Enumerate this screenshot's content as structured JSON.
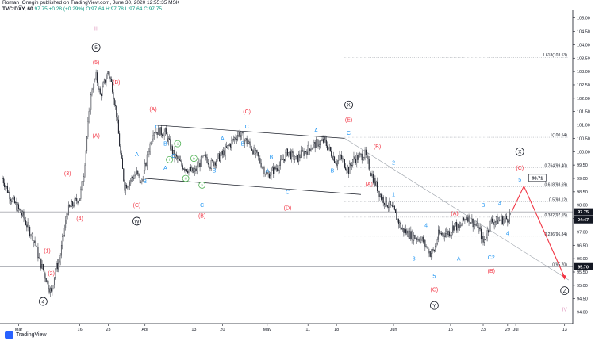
{
  "header": {
    "line1": "Roman_Onegin published on TradingView.com, June 30, 2020 12:55:35 MSK",
    "symbol": "TVC:DXY, 60",
    "last": "97.75",
    "change": "+0.28 (+0.29%)",
    "ohlc": "O:97.64 H:97.78 L:97.64 C:97.75"
  },
  "footer": {
    "brand": "TradingView",
    "logo_icon": "tradingview-logo-icon"
  },
  "colors": {
    "candle": "#131722",
    "blue_label": "#2196f3",
    "red_label": "#f23645",
    "green_label": "#4caf50",
    "purple_label": "#e2a2c4",
    "fib": "#8a8f98",
    "channel": "#131722",
    "projection": "#f23645",
    "tag_bg": "#131722"
  },
  "chart_data": {
    "type": "line",
    "title": "",
    "xlabel": "",
    "ylabel": "",
    "ylim": [
      93.75,
      105.05
    ],
    "x_range": [
      "2020-02-26",
      "2020-07-15"
    ],
    "x_ticks": [
      {
        "x": "2020-03-01",
        "label": "Mar"
      },
      {
        "x": "2020-03-16",
        "label": "16"
      },
      {
        "x": "2020-03-23",
        "label": "23"
      },
      {
        "x": "2020-04-01",
        "label": "Apr"
      },
      {
        "x": "2020-04-13",
        "label": "13"
      },
      {
        "x": "2020-04-20",
        "label": "20"
      },
      {
        "x": "2020-05-01",
        "label": "May"
      },
      {
        "x": "2020-05-11",
        "label": "11"
      },
      {
        "x": "2020-05-18",
        "label": "18"
      },
      {
        "x": "2020-06-01",
        "label": "Jun"
      },
      {
        "x": "2020-06-15",
        "label": "15"
      },
      {
        "x": "2020-06-23",
        "label": "23"
      },
      {
        "x": "2020-06-29",
        "label": "29"
      },
      {
        "x": "2020-07-01",
        "label": "Jul"
      },
      {
        "x": "2020-07-13",
        "label": "13"
      }
    ],
    "y_ticks": [
      "105.00",
      "104.50",
      "104.00",
      "103.50",
      "103.00",
      "102.50",
      "102.00",
      "101.50",
      "101.00",
      "100.50",
      "100.00",
      "99.50",
      "99.00",
      "98.50",
      "98.00",
      "97.50",
      "97.00",
      "96.50",
      "96.00",
      "95.50",
      "95.00",
      "94.50",
      "94.00"
    ],
    "series": [
      {
        "values": [
          {
            "x": "2020-02-26",
            "y": 99.0
          },
          {
            "x": "2020-02-28",
            "y": 98.3
          },
          {
            "x": "2020-03-02",
            "y": 97.6
          },
          {
            "x": "2020-03-05",
            "y": 96.6
          },
          {
            "x": "2020-03-06",
            "y": 96.0
          },
          {
            "x": "2020-03-09",
            "y": 94.7
          },
          {
            "x": "2020-03-10",
            "y": 95.6
          },
          {
            "x": "2020-03-11",
            "y": 95.9
          },
          {
            "x": "2020-03-12",
            "y": 96.9
          },
          {
            "x": "2020-03-13",
            "y": 97.8
          },
          {
            "x": "2020-03-16",
            "y": 98.3
          },
          {
            "x": "2020-03-17",
            "y": 99.2
          },
          {
            "x": "2020-03-18",
            "y": 101.0
          },
          {
            "x": "2020-03-19",
            "y": 102.4
          },
          {
            "x": "2020-03-20",
            "y": 102.8
          },
          {
            "x": "2020-03-21",
            "y": 102.1
          },
          {
            "x": "2020-03-23",
            "y": 103.0
          },
          {
            "x": "2020-03-24",
            "y": 102.4
          },
          {
            "x": "2020-03-25",
            "y": 101.4
          },
          {
            "x": "2020-03-26",
            "y": 99.9
          },
          {
            "x": "2020-03-27",
            "y": 98.7
          },
          {
            "x": "2020-03-30",
            "y": 99.2
          },
          {
            "x": "2020-03-31",
            "y": 98.8
          },
          {
            "x": "2020-04-01",
            "y": 99.4
          },
          {
            "x": "2020-04-02",
            "y": 100.1
          },
          {
            "x": "2020-04-03",
            "y": 100.8
          },
          {
            "x": "2020-04-06",
            "y": 100.7
          },
          {
            "x": "2020-04-08",
            "y": 99.9
          },
          {
            "x": "2020-04-10",
            "y": 99.5
          },
          {
            "x": "2020-04-13",
            "y": 99.2
          },
          {
            "x": "2020-04-15",
            "y": 99.7
          },
          {
            "x": "2020-04-16",
            "y": 99.8
          },
          {
            "x": "2020-04-17",
            "y": 99.5
          },
          {
            "x": "2020-04-20",
            "y": 99.9
          },
          {
            "x": "2020-04-22",
            "y": 100.3
          },
          {
            "x": "2020-04-24",
            "y": 100.7
          },
          {
            "x": "2020-04-27",
            "y": 100.2
          },
          {
            "x": "2020-04-29",
            "y": 99.7
          },
          {
            "x": "2020-05-01",
            "y": 99.1
          },
          {
            "x": "2020-05-04",
            "y": 99.5
          },
          {
            "x": "2020-05-06",
            "y": 100.0
          },
          {
            "x": "2020-05-08",
            "y": 99.7
          },
          {
            "x": "2020-05-11",
            "y": 100.1
          },
          {
            "x": "2020-05-13",
            "y": 100.3
          },
          {
            "x": "2020-05-15",
            "y": 100.4
          },
          {
            "x": "2020-05-18",
            "y": 99.6
          },
          {
            "x": "2020-05-19",
            "y": 99.8
          },
          {
            "x": "2020-05-21",
            "y": 99.3
          },
          {
            "x": "2020-05-22",
            "y": 99.7
          },
          {
            "x": "2020-05-25",
            "y": 99.9
          },
          {
            "x": "2020-05-27",
            "y": 99.0
          },
          {
            "x": "2020-05-29",
            "y": 98.3
          },
          {
            "x": "2020-06-01",
            "y": 97.8
          },
          {
            "x": "2020-06-03",
            "y": 97.1
          },
          {
            "x": "2020-06-05",
            "y": 96.9
          },
          {
            "x": "2020-06-08",
            "y": 96.7
          },
          {
            "x": "2020-06-10",
            "y": 96.2
          },
          {
            "x": "2020-06-11",
            "y": 96.3
          },
          {
            "x": "2020-06-12",
            "y": 96.9
          },
          {
            "x": "2020-06-15",
            "y": 97.0
          },
          {
            "x": "2020-06-16",
            "y": 97.3
          },
          {
            "x": "2020-06-17",
            "y": 97.1
          },
          {
            "x": "2020-06-19",
            "y": 97.6
          },
          {
            "x": "2020-06-22",
            "y": 97.1
          },
          {
            "x": "2020-06-23",
            "y": 96.6
          },
          {
            "x": "2020-06-24",
            "y": 97.0
          },
          {
            "x": "2020-06-25",
            "y": 97.4
          },
          {
            "x": "2020-06-26",
            "y": 97.4
          },
          {
            "x": "2020-06-29",
            "y": 97.5
          },
          {
            "x": "2020-06-30",
            "y": 97.75
          }
        ]
      }
    ],
    "fib_levels": [
      {
        "label": "1.618(103.53)",
        "y": 103.53
      },
      {
        "label": "1(100.54)",
        "y": 100.54
      },
      {
        "label": "0.764(99.40)",
        "y": 99.4
      },
      {
        "label": "0.618(98.69)",
        "y": 98.69
      },
      {
        "label": "0.5(98.12)",
        "y": 98.12
      },
      {
        "label": "0.382(97.55)",
        "y": 97.55
      },
      {
        "label": "0.236(96.84)",
        "y": 96.84
      },
      {
        "label": "0(95.70)",
        "y": 95.7
      }
    ],
    "price_tags": [
      {
        "label": "97.75",
        "y": 97.75
      },
      {
        "label": "04:47",
        "y": 97.45
      },
      {
        "label": "95.70",
        "y": 95.7
      }
    ],
    "hlines": [
      {
        "y": 97.75,
        "style": "solid"
      },
      {
        "y": 95.7,
        "style": "solid"
      }
    ],
    "channel": [
      {
        "x1": "2020-04-03",
        "y1": 101.0,
        "x2": "2020-05-20",
        "y2": 100.5
      },
      {
        "x1": "2020-04-01",
        "y1": 99.0,
        "x2": "2020-05-24",
        "y2": 98.4
      }
    ],
    "trendline": {
      "x1": "2020-05-20",
      "y1": 100.5,
      "x2": "2020-07-14",
      "y2": 95.2
    },
    "projection": {
      "points": [
        {
          "x": "2020-06-30",
          "y": 97.75
        },
        {
          "x": "2020-07-03",
          "y": 98.71
        },
        {
          "x": "2020-07-13",
          "y": 95.3
        }
      ],
      "label": "98.71"
    },
    "annotations": [
      {
        "text": "III",
        "x": "2020-03-20",
        "y": 104.6,
        "color": "purple",
        "style": "plain"
      },
      {
        "text": "5",
        "x": "2020-03-20",
        "y": 103.9,
        "color": "black",
        "style": "circle"
      },
      {
        "text": "(5)",
        "x": "2020-03-20",
        "y": 103.35,
        "color": "red",
        "style": "plain"
      },
      {
        "text": "(B)",
        "x": "2020-03-25",
        "y": 102.6,
        "color": "red",
        "style": "plain"
      },
      {
        "text": "(A)",
        "x": "2020-03-20",
        "y": 100.6,
        "color": "red",
        "style": "plain"
      },
      {
        "text": "(3)",
        "x": "2020-03-13",
        "y": 99.2,
        "color": "red",
        "style": "plain"
      },
      {
        "text": "(4)",
        "x": "2020-03-16",
        "y": 97.5,
        "color": "red",
        "style": "plain"
      },
      {
        "text": "(1)",
        "x": "2020-03-08",
        "y": 96.3,
        "color": "red",
        "style": "plain"
      },
      {
        "text": "(2)",
        "x": "2020-03-09",
        "y": 95.45,
        "color": "red",
        "style": "plain"
      },
      {
        "text": "4",
        "x": "2020-03-07",
        "y": 94.4,
        "color": "black",
        "style": "circle"
      },
      {
        "text": "(A)",
        "x": "2020-04-03",
        "y": 101.6,
        "color": "red",
        "style": "plain"
      },
      {
        "text": "C",
        "x": "2020-04-04",
        "y": 100.95,
        "color": "blue",
        "style": "plain"
      },
      {
        "text": "A",
        "x": "2020-03-30",
        "y": 99.9,
        "color": "blue",
        "style": "plain"
      },
      {
        "text": "B",
        "x": "2020-04-01",
        "y": 98.9,
        "color": "blue",
        "style": "plain"
      },
      {
        "text": "B",
        "x": "2020-04-06",
        "y": 100.3,
        "color": "blue",
        "style": "plain"
      },
      {
        "text": "ii",
        "x": "2020-04-09",
        "y": 100.3,
        "color": "green",
        "style": "circle"
      },
      {
        "text": "A",
        "x": "2020-04-06",
        "y": 99.4,
        "color": "blue",
        "style": "plain"
      },
      {
        "text": "C",
        "x": "2020-04-08",
        "y": 99.85,
        "color": "blue",
        "style": "plain"
      },
      {
        "text": "i",
        "x": "2020-04-07",
        "y": 99.7,
        "color": "green",
        "style": "circle"
      },
      {
        "text": "iv",
        "x": "2020-04-13",
        "y": 99.75,
        "color": "green",
        "style": "circle"
      },
      {
        "text": "iii",
        "x": "2020-04-11",
        "y": 99.0,
        "color": "green",
        "style": "circle"
      },
      {
        "text": "v",
        "x": "2020-04-15",
        "y": 98.75,
        "color": "green",
        "style": "circle"
      },
      {
        "text": "C",
        "x": "2020-04-15",
        "y": 98.0,
        "color": "blue",
        "style": "plain"
      },
      {
        "text": "(C)",
        "x": "2020-03-30",
        "y": 98.0,
        "color": "red",
        "style": "plain"
      },
      {
        "text": "W",
        "x": "2020-03-30",
        "y": 97.4,
        "color": "black",
        "style": "circle"
      },
      {
        "text": "(B)",
        "x": "2020-04-15",
        "y": 97.6,
        "color": "red",
        "style": "plain"
      },
      {
        "text": "B",
        "x": "2020-04-18",
        "y": 99.3,
        "color": "blue",
        "style": "plain"
      },
      {
        "text": "A",
        "x": "2020-04-20",
        "y": 100.5,
        "color": "blue",
        "style": "plain"
      },
      {
        "text": "B",
        "x": "2020-04-25",
        "y": 100.3,
        "color": "blue",
        "style": "plain"
      },
      {
        "text": "C",
        "x": "2020-04-26",
        "y": 100.95,
        "color": "blue",
        "style": "plain"
      },
      {
        "text": "(C)",
        "x": "2020-04-26",
        "y": 101.5,
        "color": "red",
        "style": "plain"
      },
      {
        "text": "A",
        "x": "2020-05-01",
        "y": 99.3,
        "color": "blue",
        "style": "plain"
      },
      {
        "text": "B",
        "x": "2020-05-02",
        "y": 99.8,
        "color": "blue",
        "style": "plain"
      },
      {
        "text": "C",
        "x": "2020-05-06",
        "y": 98.5,
        "color": "blue",
        "style": "plain"
      },
      {
        "text": "(D)",
        "x": "2020-05-06",
        "y": 97.9,
        "color": "red",
        "style": "plain"
      },
      {
        "text": "A",
        "x": "2020-05-13",
        "y": 100.8,
        "color": "blue",
        "style": "plain"
      },
      {
        "text": "B",
        "x": "2020-05-17",
        "y": 99.3,
        "color": "blue",
        "style": "plain"
      },
      {
        "text": "C",
        "x": "2020-05-21",
        "y": 100.7,
        "color": "blue",
        "style": "plain"
      },
      {
        "text": "(E)",
        "x": "2020-05-21",
        "y": 101.2,
        "color": "red",
        "style": "plain"
      },
      {
        "text": "X",
        "x": "2020-05-21",
        "y": 101.75,
        "color": "black",
        "style": "circle"
      },
      {
        "text": "(B)",
        "x": "2020-05-28",
        "y": 100.2,
        "color": "red",
        "style": "plain"
      },
      {
        "text": "2",
        "x": "2020-06-01",
        "y": 99.6,
        "color": "blue",
        "style": "plain"
      },
      {
        "text": "(A)",
        "x": "2020-05-26",
        "y": 98.8,
        "color": "red",
        "style": "plain"
      },
      {
        "text": "1",
        "x": "2020-06-01",
        "y": 98.4,
        "color": "blue",
        "style": "plain"
      },
      {
        "text": "4",
        "x": "2020-06-09",
        "y": 97.25,
        "color": "blue",
        "style": "plain"
      },
      {
        "text": "3",
        "x": "2020-06-06",
        "y": 96.0,
        "color": "blue",
        "style": "plain"
      },
      {
        "text": "5",
        "x": "2020-06-11",
        "y": 95.35,
        "color": "blue",
        "style": "plain"
      },
      {
        "text": "(C)",
        "x": "2020-06-11",
        "y": 94.85,
        "color": "red",
        "style": "plain"
      },
      {
        "text": "Y",
        "x": "2020-06-11",
        "y": 94.25,
        "color": "black",
        "style": "circle"
      },
      {
        "text": "(A)",
        "x": "2020-06-16",
        "y": 97.7,
        "color": "red",
        "style": "plain"
      },
      {
        "text": "A",
        "x": "2020-06-17",
        "y": 96.0,
        "color": "blue",
        "style": "plain"
      },
      {
        "text": "B",
        "x": "2020-06-23",
        "y": 98.0,
        "color": "blue",
        "style": "plain"
      },
      {
        "text": "C2",
        "x": "2020-06-25",
        "y": 96.05,
        "color": "blue",
        "style": "plain"
      },
      {
        "text": "(B)",
        "x": "2020-06-25",
        "y": 95.55,
        "color": "red",
        "style": "plain"
      },
      {
        "text": "3",
        "x": "2020-06-27",
        "y": 98.1,
        "color": "blue",
        "style": "plain"
      },
      {
        "text": "4",
        "x": "2020-06-29",
        "y": 96.95,
        "color": "blue",
        "style": "plain"
      },
      {
        "text": "X",
        "x": "2020-07-02",
        "y": 100.0,
        "color": "black",
        "style": "circle"
      },
      {
        "text": "(C)",
        "x": "2020-07-02",
        "y": 99.4,
        "color": "red",
        "style": "plain"
      },
      {
        "text": "5",
        "x": "2020-07-02",
        "y": 98.95,
        "color": "blue",
        "style": "plain"
      },
      {
        "text": "Z",
        "x": "2020-07-13",
        "y": 94.8,
        "color": "black",
        "style": "circle"
      },
      {
        "text": "IV",
        "x": "2020-07-13",
        "y": 94.1,
        "color": "purple",
        "style": "plain"
      }
    ]
  }
}
